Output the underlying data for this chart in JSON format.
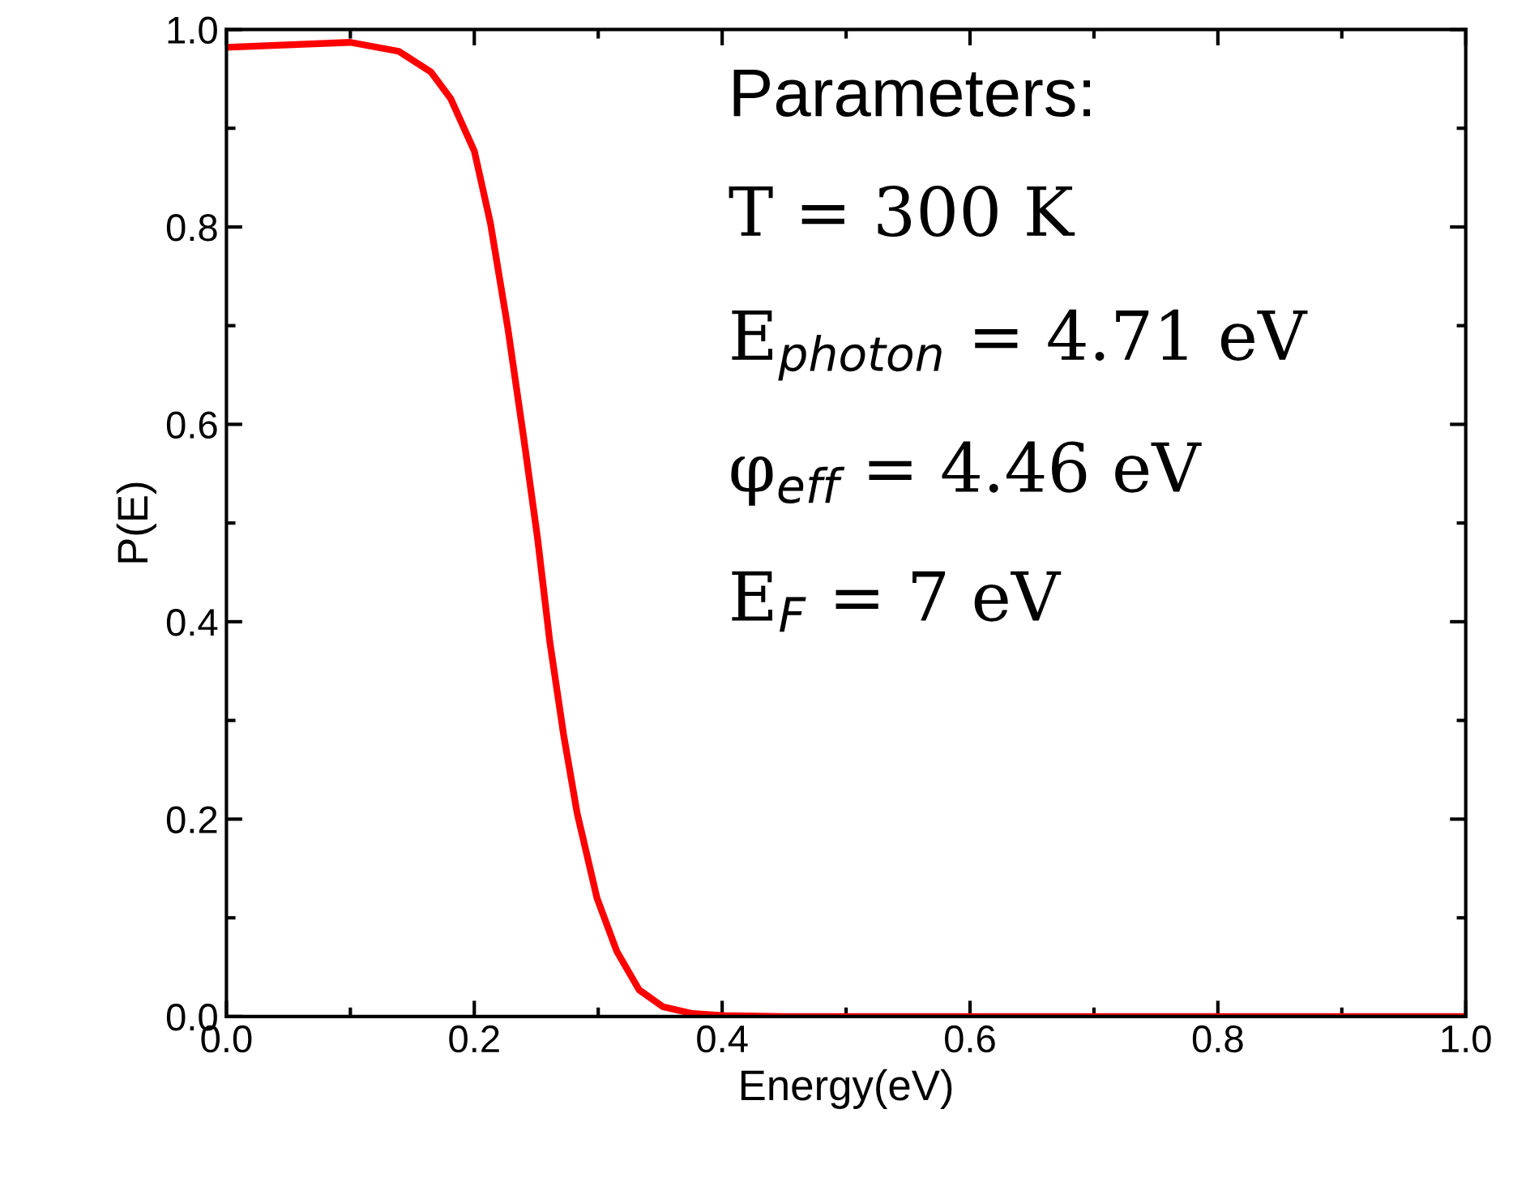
{
  "chart_data": {
    "type": "line",
    "xlabel": "Energy(eV)",
    "ylabel": "P(E)",
    "x": [
      0,
      0.1,
      0.139,
      0.165,
      0.181,
      0.2,
      0.213,
      0.227,
      0.24,
      0.251,
      0.261,
      0.272,
      0.283,
      0.299,
      0.315,
      0.333,
      0.352,
      0.376,
      0.4,
      0.45,
      0.5,
      0.6,
      0.7,
      0.8,
      0.9,
      1.0
    ],
    "series": [
      {
        "color": "#ff0000",
        "values": [
          0.982,
          0.987,
          0.978,
          0.957,
          0.93,
          0.877,
          0.804,
          0.698,
          0.585,
          0.485,
          0.379,
          0.286,
          0.206,
          0.12,
          0.066,
          0.027,
          0.01,
          0.003,
          0.001,
          0,
          0,
          0,
          0,
          0,
          0,
          0
        ]
      }
    ],
    "xlim": [
      0,
      1
    ],
    "ylim": [
      0,
      1
    ],
    "xticks": [
      {
        "value": 0,
        "label": "0.0"
      },
      0.2,
      0.4,
      0.6,
      0.8,
      {
        "value": 1,
        "label": "1.0"
      }
    ],
    "yticks": [
      {
        "value": 0,
        "label": "0.0"
      },
      0.2,
      0.4,
      0.6,
      0.8,
      {
        "value": 1,
        "label": "1.0"
      }
    ],
    "grid": false,
    "legend": false,
    "marker": "none",
    "line_style": "solid",
    "annotations": [
      "Parameters:",
      "T = 300 K",
      "E$_{photon}$ = 4.71 eV",
      "φ$_{eff}$ = 4.46 eV",
      "E$_{F}$ = 7 eV"
    ]
  }
}
